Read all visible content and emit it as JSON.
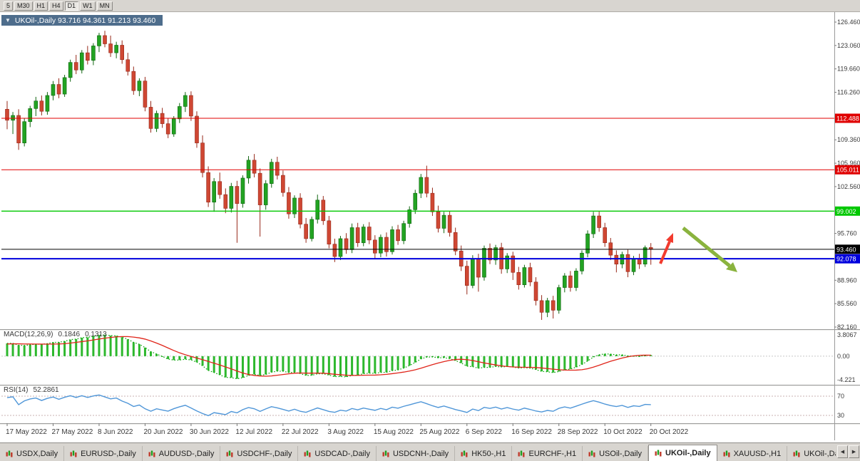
{
  "toolbar": {
    "periods": [
      {
        "label": "5"
      },
      {
        "label": "M30"
      },
      {
        "label": "H1"
      },
      {
        "label": "H4"
      },
      {
        "label": "D1",
        "active": true
      },
      {
        "label": "W1"
      },
      {
        "label": "MN"
      }
    ]
  },
  "chart_header": {
    "dropdown": "▼",
    "title": "UKOil-,Daily 93.716 94.361 91.213 93.460"
  },
  "chart_data": {
    "type": "candlestick",
    "symbol": "UKOil-",
    "timeframe": "Daily",
    "last_ohlc": {
      "open": "93.716",
      "high": "94.361",
      "low": "91.213",
      "close": "93.460"
    },
    "price_axis": [
      "126.460",
      "123.060",
      "119.660",
      "116.260",
      "109.360",
      "105.960",
      "102.560",
      "95.760",
      "88.960",
      "85.560",
      "82.160"
    ],
    "price_span": {
      "top_tick": 126.46,
      "bottom_tick": 82.16
    },
    "up_color": "#22a322",
    "down_color": "#cf4733",
    "horizontal_lines": [
      {
        "price": 112.488,
        "label": "112.488",
        "color": "#e00000",
        "width": 1
      },
      {
        "price": 105.011,
        "label": "105.011",
        "color": "#e00000",
        "width": 1
      },
      {
        "price": 99.002,
        "label": "99.002",
        "color": "#00c800",
        "width": 1.4
      },
      {
        "price": 93.46,
        "label": "93.460",
        "color": "#000000",
        "width": 1
      },
      {
        "price": 92.078,
        "label": "92.078",
        "color": "#0000dd",
        "width": 2
      }
    ],
    "date_axis": [
      {
        "label": "17 May 2022",
        "index": 0
      },
      {
        "label": "27 May 2022",
        "index": 8
      },
      {
        "label": "8 Jun 2022",
        "index": 16
      },
      {
        "label": "20 Jun 2022",
        "index": 24
      },
      {
        "label": "30 Jun 2022",
        "index": 32
      },
      {
        "label": "12 Jul 2022",
        "index": 40
      },
      {
        "label": "22 Jul 2022",
        "index": 48
      },
      {
        "label": "3 Aug 2022",
        "index": 56
      },
      {
        "label": "15 Aug 2022",
        "index": 64
      },
      {
        "label": "25 Aug 2022",
        "index": 72
      },
      {
        "label": "6 Sep 2022",
        "index": 80
      },
      {
        "label": "16 Sep 2022",
        "index": 88
      },
      {
        "label": "28 Sep 2022",
        "index": 96
      },
      {
        "label": "10 Oct 2022",
        "index": 104
      },
      {
        "label": "20 Oct 2022",
        "index": 112
      }
    ],
    "candles": [
      [
        113.8,
        115.0,
        110.9,
        112.2
      ],
      [
        112.2,
        113.4,
        110.2,
        112.9
      ],
      [
        112.9,
        113.8,
        107.9,
        108.9
      ],
      [
        108.9,
        112.5,
        108.4,
        112.0
      ],
      [
        112.0,
        114.3,
        111.2,
        113.9
      ],
      [
        113.9,
        115.6,
        112.8,
        115.0
      ],
      [
        115.0,
        115.8,
        112.9,
        113.5
      ],
      [
        113.5,
        116.3,
        113.0,
        115.8
      ],
      [
        115.8,
        117.9,
        115.1,
        117.4
      ],
      [
        117.4,
        118.3,
        115.4,
        116.0
      ],
      [
        116.0,
        118.8,
        115.6,
        118.4
      ],
      [
        118.4,
        121.0,
        117.8,
        120.6
      ],
      [
        120.6,
        121.7,
        118.9,
        119.5
      ],
      [
        119.5,
        122.4,
        119.0,
        122.0
      ],
      [
        122.0,
        123.0,
        120.3,
        120.9
      ],
      [
        120.9,
        123.4,
        120.2,
        123.0
      ],
      [
        123.0,
        124.9,
        122.1,
        124.5
      ],
      [
        124.5,
        125.2,
        122.8,
        123.3
      ],
      [
        123.3,
        124.5,
        121.4,
        122.0
      ],
      [
        122.0,
        123.6,
        121.2,
        123.1
      ],
      [
        123.1,
        123.8,
        120.4,
        121.0
      ],
      [
        121.0,
        122.0,
        118.7,
        119.3
      ],
      [
        119.3,
        120.0,
        115.9,
        116.5
      ],
      [
        116.5,
        118.3,
        115.7,
        117.9
      ],
      [
        117.9,
        118.5,
        113.5,
        114.1
      ],
      [
        114.1,
        115.0,
        110.4,
        111.0
      ],
      [
        111.0,
        113.6,
        110.5,
        113.2
      ],
      [
        113.2,
        114.0,
        111.1,
        111.7
      ],
      [
        111.7,
        112.5,
        109.6,
        110.2
      ],
      [
        110.2,
        112.8,
        109.8,
        112.4
      ],
      [
        112.4,
        114.7,
        111.8,
        114.2
      ],
      [
        114.2,
        116.3,
        113.4,
        115.8
      ],
      [
        115.8,
        116.4,
        112.1,
        112.8
      ],
      [
        112.8,
        113.5,
        108.2,
        108.9
      ],
      [
        108.9,
        110.0,
        103.9,
        104.6
      ],
      [
        104.6,
        105.5,
        99.6,
        100.3
      ],
      [
        100.3,
        103.8,
        98.9,
        103.3
      ],
      [
        103.3,
        104.6,
        100.8,
        101.4
      ],
      [
        101.4,
        102.3,
        98.7,
        99.4
      ],
      [
        99.4,
        103.1,
        98.8,
        102.6
      ],
      [
        102.6,
        103.4,
        94.4,
        100.1
      ],
      [
        100.1,
        104.2,
        99.5,
        103.8
      ],
      [
        103.8,
        107.0,
        103.0,
        106.4
      ],
      [
        106.4,
        107.3,
        103.9,
        104.5
      ],
      [
        104.5,
        105.2,
        95.3,
        99.9
      ],
      [
        99.9,
        103.5,
        99.2,
        103.0
      ],
      [
        103.0,
        106.6,
        102.4,
        106.1
      ],
      [
        106.1,
        106.9,
        103.6,
        104.2
      ],
      [
        104.2,
        104.9,
        101.1,
        101.7
      ],
      [
        101.7,
        102.5,
        97.9,
        98.6
      ],
      [
        98.6,
        101.3,
        98.0,
        100.9
      ],
      [
        100.9,
        101.6,
        96.5,
        97.1
      ],
      [
        97.1,
        98.0,
        94.4,
        95.0
      ],
      [
        95.0,
        98.2,
        94.6,
        97.8
      ],
      [
        97.8,
        101.4,
        97.2,
        100.6
      ],
      [
        100.6,
        101.2,
        97.0,
        97.6
      ],
      [
        97.6,
        98.3,
        93.6,
        94.2
      ],
      [
        94.2,
        95.0,
        91.6,
        92.4
      ],
      [
        92.4,
        95.4,
        91.9,
        95.0
      ],
      [
        95.0,
        95.8,
        92.8,
        93.4
      ],
      [
        93.4,
        97.2,
        92.9,
        96.6
      ],
      [
        96.6,
        97.3,
        93.8,
        94.4
      ],
      [
        94.4,
        97.1,
        93.9,
        96.7
      ],
      [
        96.7,
        97.4,
        94.2,
        94.8
      ],
      [
        94.8,
        95.5,
        92.1,
        92.9
      ],
      [
        92.9,
        95.6,
        92.3,
        95.2
      ],
      [
        95.2,
        95.9,
        92.4,
        93.1
      ],
      [
        93.1,
        96.8,
        92.7,
        96.3
      ],
      [
        96.3,
        97.0,
        94.1,
        94.7
      ],
      [
        94.7,
        97.6,
        94.2,
        97.2
      ],
      [
        97.2,
        99.7,
        96.6,
        99.2
      ],
      [
        99.2,
        102.1,
        98.6,
        101.6
      ],
      [
        101.6,
        104.4,
        100.9,
        103.9
      ],
      [
        103.9,
        105.6,
        101.0,
        101.6
      ],
      [
        101.6,
        102.4,
        98.3,
        98.9
      ],
      [
        98.9,
        99.8,
        95.9,
        96.5
      ],
      [
        96.5,
        98.9,
        95.8,
        98.4
      ],
      [
        98.4,
        99.0,
        95.3,
        95.9
      ],
      [
        95.9,
        96.6,
        92.6,
        93.2
      ],
      [
        93.2,
        94.0,
        90.3,
        91.0
      ],
      [
        91.0,
        91.8,
        86.9,
        88.2
      ],
      [
        88.2,
        92.6,
        87.8,
        92.1
      ],
      [
        92.1,
        92.8,
        87.3,
        89.4
      ],
      [
        89.4,
        94.0,
        88.9,
        93.6
      ],
      [
        93.6,
        94.3,
        91.3,
        91.9
      ],
      [
        91.9,
        94.1,
        91.2,
        93.7
      ],
      [
        93.7,
        94.4,
        89.9,
        90.6
      ],
      [
        90.6,
        92.9,
        90.0,
        92.5
      ],
      [
        92.5,
        93.1,
        89.0,
        90.1
      ],
      [
        90.1,
        90.9,
        87.6,
        88.3
      ],
      [
        88.3,
        91.2,
        87.9,
        90.8
      ],
      [
        90.8,
        91.5,
        88.1,
        88.7
      ],
      [
        88.7,
        89.4,
        85.3,
        86.0
      ],
      [
        86.0,
        86.8,
        83.2,
        84.3
      ],
      [
        84.3,
        86.4,
        83.6,
        86.0
      ],
      [
        86.0,
        86.7,
        83.4,
        84.6
      ],
      [
        84.6,
        88.3,
        84.1,
        87.9
      ],
      [
        87.9,
        90.0,
        87.2,
        89.6
      ],
      [
        89.6,
        90.3,
        87.3,
        87.9
      ],
      [
        87.9,
        90.7,
        87.4,
        90.3
      ],
      [
        90.3,
        93.3,
        89.8,
        92.9
      ],
      [
        92.9,
        96.2,
        92.3,
        95.7
      ],
      [
        95.7,
        98.9,
        95.1,
        98.3
      ],
      [
        98.3,
        99.0,
        96.0,
        96.6
      ],
      [
        96.6,
        97.3,
        93.8,
        94.4
      ],
      [
        94.4,
        95.1,
        91.9,
        92.6
      ],
      [
        92.6,
        93.3,
        90.1,
        91.3
      ],
      [
        91.3,
        93.1,
        90.7,
        92.7
      ],
      [
        92.7,
        93.4,
        89.4,
        90.2
      ],
      [
        90.2,
        92.5,
        89.7,
        92.1
      ],
      [
        92.1,
        92.8,
        90.6,
        91.3
      ],
      [
        91.3,
        94.0,
        90.9,
        93.7
      ],
      [
        93.716,
        94.361,
        91.213,
        93.46
      ]
    ],
    "indicators": {
      "macd": {
        "title": "MACD(12,26,9)",
        "value_main": "0.1846",
        "value_signal": "0.1313",
        "axis": [
          "3.8067",
          "0.00",
          "-4.221"
        ],
        "histogram_color": "#2db82d",
        "line_color": "#00a000",
        "signal_color": "#e0251a"
      },
      "rsi": {
        "title": "RSI(14)",
        "value": "52.2861",
        "axis": [
          "70",
          "30"
        ],
        "levels": [
          70,
          30
        ],
        "line_color": "#4f96d8"
      }
    },
    "annotations": [
      {
        "type": "up-arrow",
        "color": "#f23b2e"
      },
      {
        "type": "down-arrow",
        "color": "#8ab33e"
      }
    ]
  },
  "tabbar": {
    "scroll_left": "◀",
    "scroll_right": "▶",
    "tabs": [
      {
        "label": "USDX,Daily"
      },
      {
        "label": "EURUSD-,Daily"
      },
      {
        "label": "AUDUSD-,Daily"
      },
      {
        "label": "USDCHF-,Daily"
      },
      {
        "label": "USDCAD-,Daily"
      },
      {
        "label": "USDCNH-,Daily"
      },
      {
        "label": "HK50-,H1"
      },
      {
        "label": "EURCHF-,H1"
      },
      {
        "label": "USOil-,Daily"
      },
      {
        "label": "UKOil-,Daily",
        "active": true
      },
      {
        "label": "XAUUSD-,H1"
      },
      {
        "label": "UKOil-,Daily"
      }
    ]
  }
}
